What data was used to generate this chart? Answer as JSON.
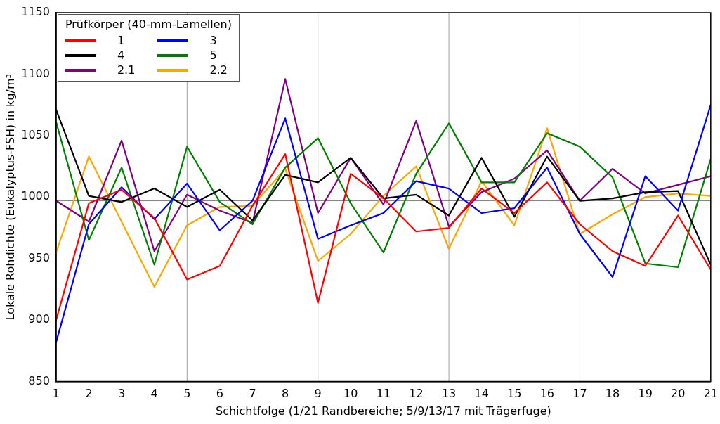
{
  "chart_data": {
    "type": "line",
    "xlabel": "Schichtfolge (1/21 Randbereiche; 5/9/13/17 mit Trägerfuge)",
    "ylabel": "Lokale Rohdichte (Eukalyptus-FSH) in kg/m³",
    "legend_title": "Prüfkörper (40-mm-Lamellen)",
    "legend": "top left",
    "grid": false,
    "marker": "none",
    "line_style": "solid",
    "x": [
      1,
      2,
      3,
      4,
      5,
      6,
      7,
      8,
      9,
      10,
      11,
      12,
      13,
      14,
      15,
      16,
      17,
      18,
      19,
      20,
      21
    ],
    "xlim": [
      1,
      21
    ],
    "xticks": [
      1,
      2,
      3,
      4,
      5,
      6,
      7,
      8,
      9,
      10,
      11,
      12,
      13,
      14,
      15,
      16,
      17,
      18,
      19,
      20,
      21
    ],
    "ylim": [
      850,
      1150
    ],
    "yticks": [
      850,
      900,
      950,
      1000,
      1050,
      1100,
      1150
    ],
    "ref_lines": [
      {
        "axis": "x",
        "value": 5,
        "color": "#a0a0a0"
      },
      {
        "axis": "x",
        "value": 9,
        "color": "#a0a0a0"
      },
      {
        "axis": "x",
        "value": 13,
        "color": "#a0a0a0"
      },
      {
        "axis": "x",
        "value": 17,
        "color": "#a0a0a0"
      },
      {
        "axis": "y",
        "value": 997,
        "color": "#808080"
      }
    ],
    "series": [
      {
        "name": "1",
        "color": "#ff0000",
        "values": [
          900,
          995,
          1006,
          983,
          933,
          944,
          993,
          1035,
          914,
          1019,
          999,
          972,
          975,
          1007,
          987,
          1012,
          978,
          956,
          944,
          985,
          941
        ]
      },
      {
        "name": "3",
        "color": "#0000ff",
        "values": [
          882,
          978,
          1008,
          982,
          1011,
          973,
          997,
          1064,
          966,
          977,
          987,
          1013,
          1007,
          987,
          991,
          1024,
          970,
          935,
          1017,
          989,
          1075
        ]
      },
      {
        "name": "4",
        "color": "#000000",
        "values": [
          1071,
          1001,
          996,
          1007,
          992,
          1006,
          981,
          1018,
          1012,
          1032,
          999,
          1002,
          985,
          1032,
          984,
          1033,
          997,
          999,
          1004,
          1005,
          945
        ]
      },
      {
        "name": "5",
        "color": "#008000",
        "values": [
          1061,
          965,
          1024,
          945,
          1041,
          996,
          978,
          1024,
          1048,
          995,
          955,
          1019,
          1060,
          1012,
          1012,
          1052,
          1041,
          1016,
          946,
          943,
          1031
        ]
      },
      {
        "name": "2.1",
        "color": "#800080",
        "values": [
          997,
          980,
          1046,
          956,
          1002,
          989,
          979,
          1096,
          987,
          1032,
          994,
          1062,
          976,
          1004,
          1015,
          1038,
          997,
          1023,
          1003,
          1010,
          1017
        ]
      },
      {
        "name": "2.2",
        "color": "#ffa500",
        "values": [
          955,
          1033,
          980,
          927,
          977,
          992,
          993,
          1023,
          948,
          970,
          1001,
          1025,
          958,
          1013,
          977,
          1056,
          970,
          986,
          1000,
          1003,
          1001
        ]
      }
    ]
  }
}
